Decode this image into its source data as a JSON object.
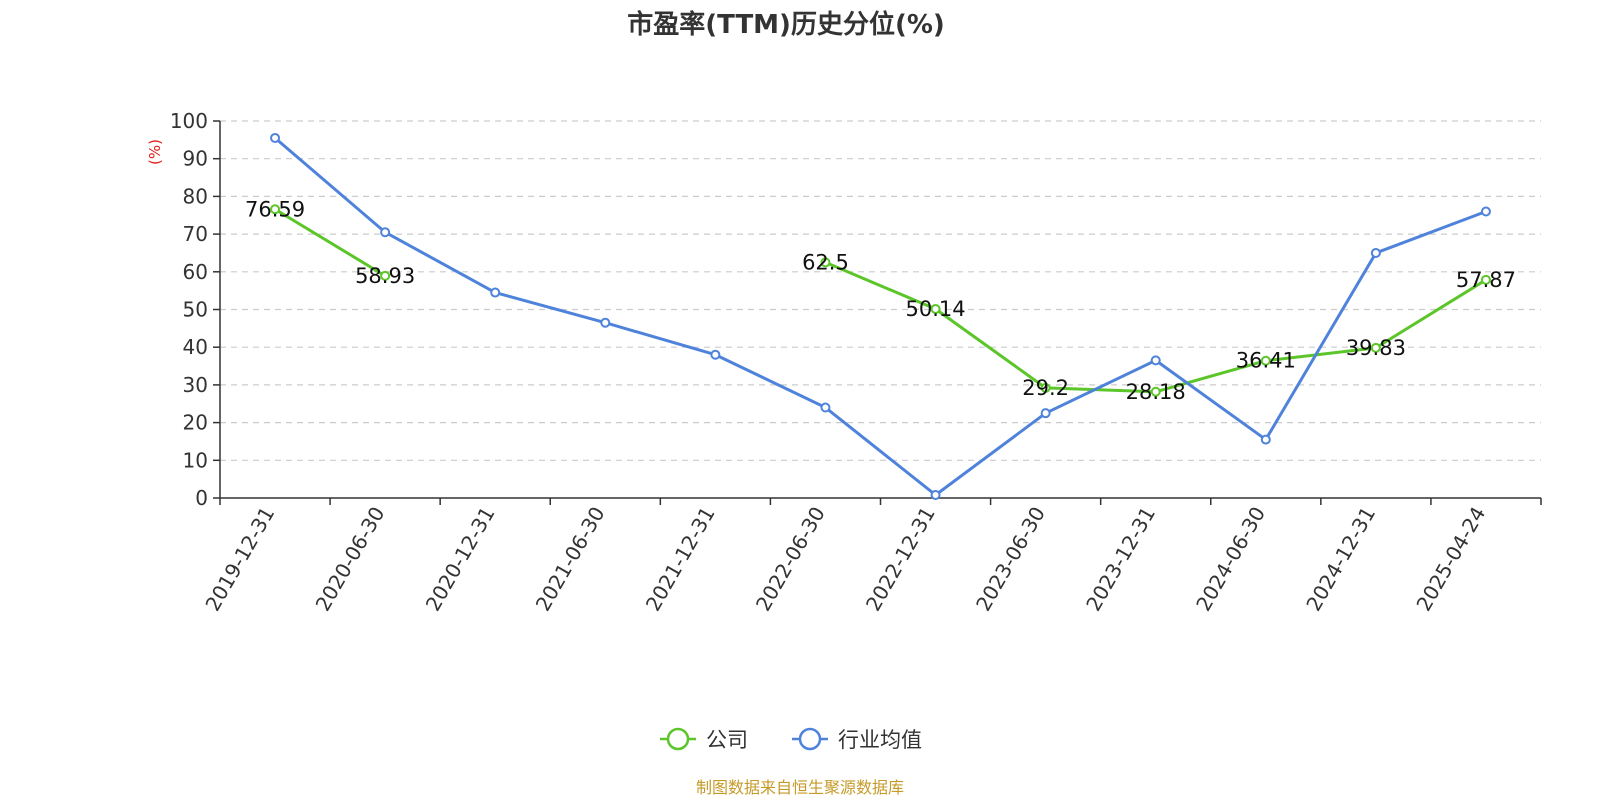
{
  "chart_data": {
    "type": "line",
    "title": "市盈率(TTM)历史分位(%)",
    "ylabel": "(%)",
    "xlabel": "",
    "ylim": [
      0,
      100
    ],
    "yticks": [
      0,
      10,
      20,
      30,
      40,
      50,
      60,
      70,
      80,
      90,
      100
    ],
    "grid": true,
    "legend_position": "bottom",
    "categories": [
      "2019-12-31",
      "2020-06-30",
      "2020-12-31",
      "2021-06-30",
      "2021-12-31",
      "2022-06-30",
      "2022-12-31",
      "2023-06-30",
      "2023-12-31",
      "2024-06-30",
      "2024-12-31",
      "2025-04-24"
    ],
    "series": [
      {
        "name": "公司",
        "color": "#5cc52a",
        "values": [
          76.59,
          58.93,
          null,
          null,
          null,
          62.5,
          50.14,
          29.2,
          28.18,
          36.41,
          39.83,
          57.87
        ],
        "labels": [
          "76.59",
          "58.93",
          "",
          "",
          "",
          "62.5",
          "50.14",
          "29.2",
          "28.18",
          "36.41",
          "39.83",
          "57.87"
        ]
      },
      {
        "name": "行业均值",
        "color": "#4f83db",
        "values": [
          95.5,
          70.5,
          54.5,
          46.5,
          38,
          24,
          0.8,
          22.5,
          36.5,
          15.5,
          65,
          76
        ]
      }
    ],
    "source": "制图数据来自恒生聚源数据库",
    "source_color": "#c59a28",
    "unit_color": "#e0201a",
    "axis_color": "#333333",
    "grid_color": "#cccccc"
  }
}
